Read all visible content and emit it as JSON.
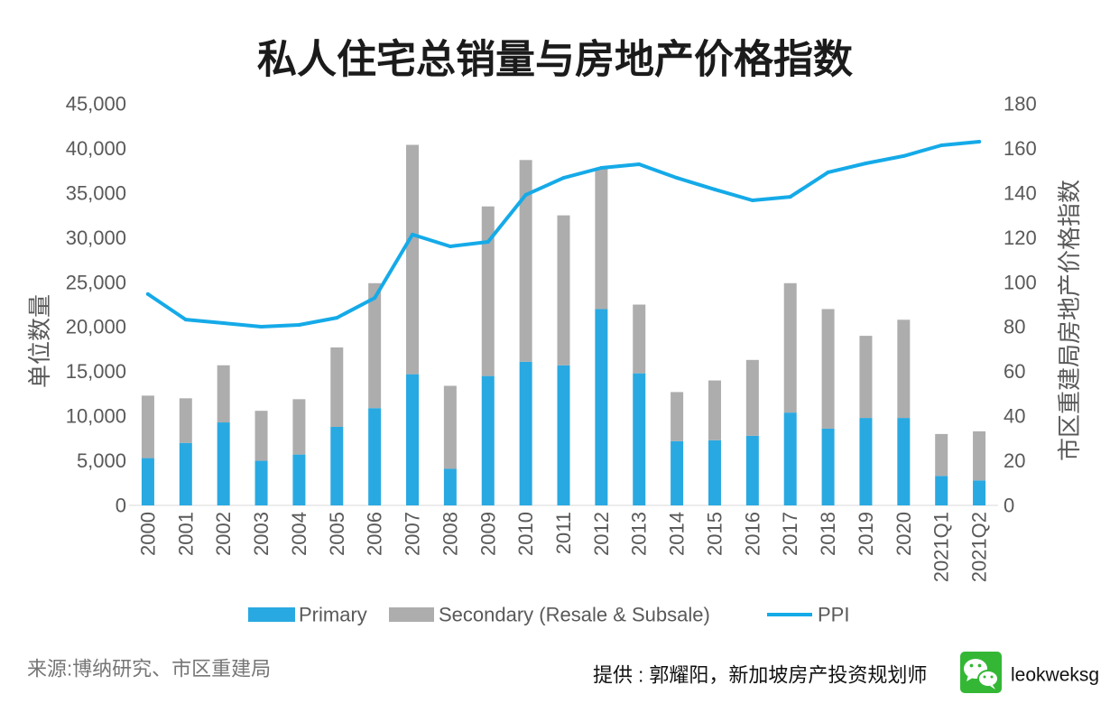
{
  "chart_data": {
    "type": "bar",
    "stacked": true,
    "title": "私人住宅总销量与房地产价格指数",
    "xlabel": "",
    "ylabel": "单位数量",
    "y2label": "市区重建局房地产价格指数",
    "ylim": [
      0,
      45000
    ],
    "y2lim": [
      0,
      180
    ],
    "yticks": [
      0,
      5000,
      10000,
      15000,
      20000,
      25000,
      30000,
      35000,
      40000,
      45000
    ],
    "ytick_labels": [
      "0",
      "5,000",
      "10,000",
      "15,000",
      "20,000",
      "25,000",
      "30,000",
      "35,000",
      "40,000",
      "45,000"
    ],
    "y2ticks": [
      0,
      20,
      40,
      60,
      80,
      100,
      120,
      140,
      160,
      180
    ],
    "y2tick_labels": [
      "0",
      "20",
      "40",
      "60",
      "80",
      "100",
      "120",
      "140",
      "160",
      "180"
    ],
    "categories": [
      "2000",
      "2001",
      "2002",
      "2003",
      "2004",
      "2005",
      "2006",
      "2007",
      "2008",
      "2009",
      "2010",
      "2011",
      "2012",
      "2013",
      "2014",
      "2015",
      "2016",
      "2017",
      "2018",
      "2019",
      "2020",
      "2021Q1",
      "2021Q2"
    ],
    "series": [
      {
        "name": "Primary",
        "type": "bar",
        "color": "#29A9E1",
        "values": [
          5300,
          7000,
          9300,
          5000,
          5700,
          8800,
          10900,
          14700,
          4100,
          14500,
          16100,
          15700,
          22000,
          14800,
          7200,
          7300,
          7800,
          10400,
          8600,
          9800,
          9800,
          3300,
          2800
        ]
      },
      {
        "name": "Secondary (Resale & Subsale)",
        "type": "bar",
        "color": "#ADADAD",
        "values": [
          7000,
          5000,
          6400,
          5600,
          6200,
          8900,
          14000,
          25700,
          9300,
          19000,
          22600,
          16800,
          15800,
          7700,
          5500,
          6700,
          8500,
          14500,
          13400,
          9200,
          11000,
          4700,
          5500
        ]
      },
      {
        "name": "PPI",
        "type": "line",
        "color": "#15AAE8",
        "values": [
          94.7,
          83.3,
          81.7,
          80.1,
          80.9,
          84.1,
          93.0,
          121.4,
          116.1,
          118.1,
          139.2,
          146.8,
          151.3,
          152.9,
          146.8,
          141.6,
          136.7,
          138.3,
          149.3,
          153.3,
          156.6,
          161.4,
          163.0
        ]
      }
    ],
    "legend": "bottom",
    "grid": false
  },
  "footer": {
    "source": "来源:博纳研究、市区重建局",
    "credit": "提供 : 郭耀阳，新加坡房产投资规划师",
    "wechat_icon": "wechat-icon",
    "handle": "leokweksg"
  },
  "colors": {
    "wechat_green": "#35B736",
    "axis_text": "#595959",
    "baseline": "#D9D9D9"
  }
}
